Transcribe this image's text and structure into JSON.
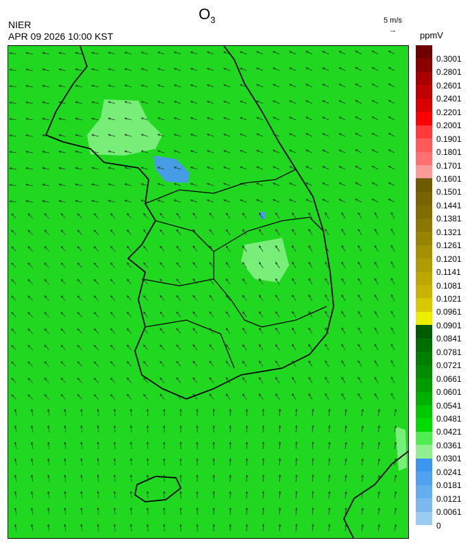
{
  "header": {
    "species": "O",
    "species_sub": "3",
    "org": "NIER",
    "datetime": "APR 09 2026 10:00 KST",
    "ref_vector_label": "5 m/s",
    "ref_vector_arrow": "→",
    "unit": "ppmV"
  },
  "colorbar": {
    "labels": [
      "0.3001",
      "0.2801",
      "0.2601",
      "0.2401",
      "0.2201",
      "0.2001",
      "0.1901",
      "0.1801",
      "0.1701",
      "0.1601",
      "0.1501",
      "0.1441",
      "0.1381",
      "0.1321",
      "0.1261",
      "0.1201",
      "0.1141",
      "0.1081",
      "0.1021",
      "0.0961",
      "0.0901",
      "0.0841",
      "0.0781",
      "0.0721",
      "0.0661",
      "0.0601",
      "0.0541",
      "0.0481",
      "0.0421",
      "0.0361",
      "0.0301",
      "0.0241",
      "0.0181",
      "0.0121",
      "0.0061",
      "0"
    ],
    "colors": [
      "#6e0000",
      "#8c0000",
      "#a80000",
      "#c00000",
      "#d80000",
      "#ff0000",
      "#ff3a3a",
      "#ff5a5a",
      "#ff7070",
      "#ff9a9a",
      "#6e5a00",
      "#786400",
      "#806c00",
      "#8c7800",
      "#988400",
      "#a49000",
      "#b09c00",
      "#bca800",
      "#c8b400",
      "#d8c800",
      "#eeee00",
      "#005a00",
      "#006e00",
      "#007e00",
      "#008c00",
      "#009c00",
      "#00b000",
      "#00c800",
      "#00dc00",
      "#50ee50",
      "#90f090",
      "#3a96f0",
      "#4ea2f0",
      "#62aef0",
      "#7abaf0",
      "#98ccf0"
    ]
  },
  "map": {
    "background_color": "#20d820",
    "coast_color": "#000000",
    "boundary_color": "#c8c8c8"
  }
}
